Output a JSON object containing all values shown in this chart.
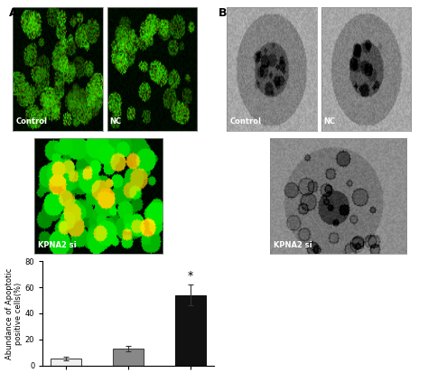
{
  "categories": [
    "Control",
    "NC",
    "KPNA2 si"
  ],
  "values": [
    5.5,
    13.0,
    54.0
  ],
  "errors": [
    1.5,
    2.0,
    8.0
  ],
  "bar_colors": [
    "#f0f0f0",
    "#888888",
    "#111111"
  ],
  "bar_edgecolors": [
    "#444444",
    "#444444",
    "#111111"
  ],
  "ylabel": "Abundance of Apoptotic\npositive cells(%)",
  "ylim": [
    0,
    80
  ],
  "yticks": [
    0,
    20,
    40,
    60,
    80
  ],
  "significance_label": "*",
  "significance_bar_index": 2,
  "bar_width": 0.5,
  "figure_width": 4.74,
  "figure_height": 4.13,
  "dpi": 100,
  "panel_label_A": "A",
  "panel_label_B": "B",
  "bg_color": "#ffffff",
  "font_size_labels": 6,
  "font_size_ylabel": 6,
  "font_size_panel": 9,
  "font_size_sig": 9,
  "font_size_img_label": 6,
  "capsize": 2,
  "error_linewidth": 0.8
}
